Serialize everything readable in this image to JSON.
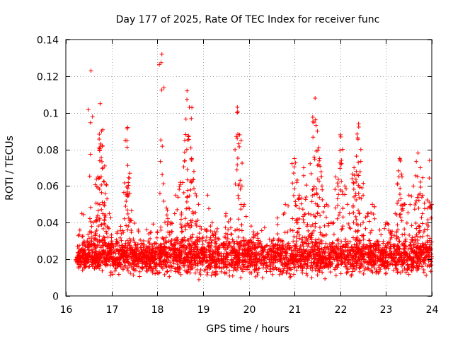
{
  "chart_data": {
    "type": "scatter",
    "title": "Day 177 of 2025, Rate Of TEC Index for receiver func",
    "xlabel": "GPS time / hours",
    "ylabel": "ROTI / TECUs",
    "xlim": [
      16,
      24
    ],
    "ylim": [
      0,
      0.14
    ],
    "x_ticks": [
      16,
      17,
      18,
      19,
      20,
      21,
      22,
      23,
      24
    ],
    "x_tick_labels": [
      "16",
      "17",
      "18",
      "19",
      "20",
      "21",
      "22",
      "23",
      "24"
    ],
    "y_ticks": [
      0,
      0.02,
      0.04,
      0.06,
      0.08,
      0.1,
      0.12,
      0.14
    ],
    "y_tick_labels": [
      "0",
      "0.02",
      "0.04",
      "0.06",
      "0.08",
      "0.1",
      "0.12",
      "0.14"
    ],
    "grid": true,
    "marker": "+",
    "color": "#ff0000",
    "series": [
      {
        "name": "ROTI",
        "points": [
          [
            16.25,
            0.019
          ],
          [
            16.3,
            0.022
          ],
          [
            16.35,
            0.045
          ],
          [
            16.4,
            0.03
          ],
          [
            16.45,
            0.018
          ],
          [
            16.5,
            0.025
          ],
          [
            16.55,
            0.123
          ],
          [
            16.6,
            0.04
          ],
          [
            16.65,
            0.035
          ],
          [
            16.7,
            0.065
          ],
          [
            16.75,
            0.105
          ],
          [
            16.78,
            0.09
          ],
          [
            16.8,
            0.082
          ],
          [
            16.85,
            0.071
          ],
          [
            16.9,
            0.053
          ],
          [
            16.95,
            0.045
          ],
          [
            17.0,
            0.03
          ],
          [
            17.05,
            0.02
          ],
          [
            17.1,
            0.015
          ],
          [
            17.2,
            0.038
          ],
          [
            17.3,
            0.085
          ],
          [
            17.35,
            0.092
          ],
          [
            17.4,
            0.067
          ],
          [
            17.5,
            0.025
          ],
          [
            17.6,
            0.02
          ],
          [
            17.7,
            0.022
          ],
          [
            17.8,
            0.03
          ],
          [
            17.9,
            0.025
          ],
          [
            18.0,
            0.035
          ],
          [
            18.1,
            0.132
          ],
          [
            18.2,
            0.048
          ],
          [
            18.3,
            0.04
          ],
          [
            18.4,
            0.055
          ],
          [
            18.5,
            0.062
          ],
          [
            18.6,
            0.085
          ],
          [
            18.65,
            0.112
          ],
          [
            18.7,
            0.103
          ],
          [
            18.75,
            0.075
          ],
          [
            18.8,
            0.068
          ],
          [
            18.9,
            0.05
          ],
          [
            19.0,
            0.032
          ],
          [
            19.1,
            0.055
          ],
          [
            19.2,
            0.04
          ],
          [
            19.3,
            0.035
          ],
          [
            19.5,
            0.045
          ],
          [
            19.6,
            0.042
          ],
          [
            19.75,
            0.103
          ],
          [
            19.8,
            0.088
          ],
          [
            19.85,
            0.06
          ],
          [
            19.9,
            0.05
          ],
          [
            20.0,
            0.03
          ],
          [
            20.1,
            0.035
          ],
          [
            20.3,
            0.025
          ],
          [
            20.5,
            0.02
          ],
          [
            20.7,
            0.03
          ],
          [
            20.8,
            0.05
          ],
          [
            21.0,
            0.075
          ],
          [
            21.05,
            0.062
          ],
          [
            21.1,
            0.055
          ],
          [
            21.2,
            0.07
          ],
          [
            21.3,
            0.045
          ],
          [
            21.4,
            0.095
          ],
          [
            21.45,
            0.108
          ],
          [
            21.5,
            0.09
          ],
          [
            21.55,
            0.075
          ],
          [
            21.6,
            0.06
          ],
          [
            21.7,
            0.05
          ],
          [
            21.8,
            0.04
          ],
          [
            21.9,
            0.065
          ],
          [
            22.0,
            0.088
          ],
          [
            22.05,
            0.08
          ],
          [
            22.1,
            0.06
          ],
          [
            22.2,
            0.045
          ],
          [
            22.3,
            0.07
          ],
          [
            22.35,
            0.068
          ],
          [
            22.4,
            0.094
          ],
          [
            22.45,
            0.08
          ],
          [
            22.5,
            0.055
          ],
          [
            22.6,
            0.045
          ],
          [
            22.7,
            0.05
          ],
          [
            22.8,
            0.03
          ],
          [
            22.9,
            0.025
          ],
          [
            23.0,
            0.04
          ],
          [
            23.1,
            0.035
          ],
          [
            23.2,
            0.045
          ],
          [
            23.3,
            0.075
          ],
          [
            23.35,
            0.065
          ],
          [
            23.4,
            0.05
          ],
          [
            23.5,
            0.055
          ],
          [
            23.6,
            0.06
          ],
          [
            23.7,
            0.078
          ],
          [
            23.75,
            0.07
          ],
          [
            23.8,
            0.055
          ],
          [
            23.9,
            0.03
          ],
          [
            23.95,
            0.074
          ],
          [
            24.0,
            0.05
          ]
        ],
        "dense_band": {
          "x_range": [
            16.25,
            24.0
          ],
          "typical_y_range": [
            0.008,
            0.035
          ],
          "approx_count": 3000
        }
      }
    ]
  }
}
